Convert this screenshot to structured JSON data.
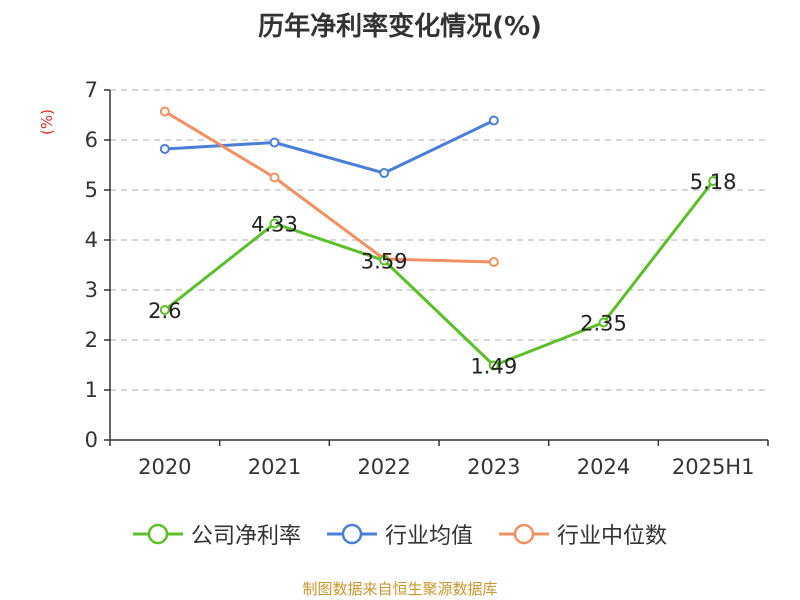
{
  "chart_data": {
    "type": "line",
    "title": "历年净利率变化情况(%)",
    "unit_label": "(%)",
    "categories": [
      "2020",
      "2021",
      "2022",
      "2023",
      "2024",
      "2025H1"
    ],
    "ylim": [
      0,
      7
    ],
    "yticks": [
      0,
      1,
      2,
      3,
      4,
      5,
      6,
      7
    ],
    "grid": true,
    "legend_position": "bottom",
    "series": [
      {
        "name": "公司净利率",
        "color": "#5cbf2a",
        "values": [
          2.6,
          4.33,
          3.59,
          1.49,
          2.35,
          5.18
        ],
        "labels": [
          "2.6",
          "4.33",
          "3.59",
          "1.49",
          "2.35",
          "5.18"
        ]
      },
      {
        "name": "行业均值",
        "color": "#4a7ed8",
        "values": [
          5.82,
          5.95,
          5.34,
          6.39,
          null,
          null
        ]
      },
      {
        "name": "行业中位数",
        "color": "#f39061",
        "values": [
          6.57,
          5.25,
          3.62,
          3.56,
          null,
          null
        ]
      }
    ]
  },
  "source_note": "制图数据来自恒生聚源数据库"
}
